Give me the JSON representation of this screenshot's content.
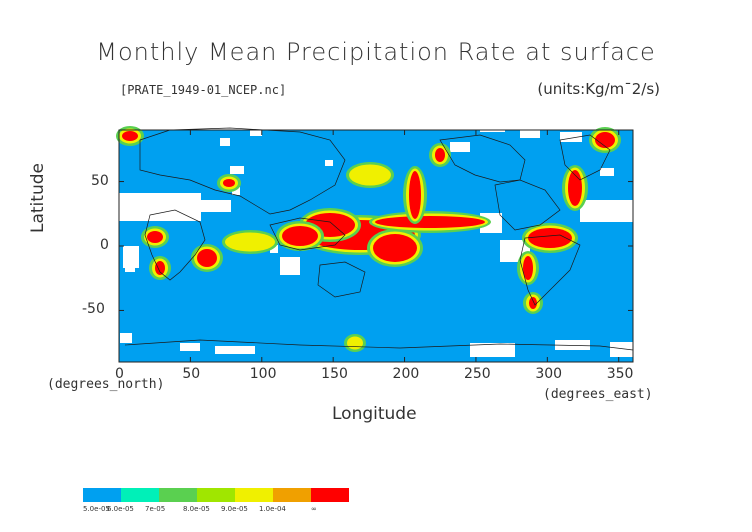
{
  "title": "Monthly Mean Precipitation Rate at surface",
  "file_label": "[PRATE_1949-01_NCEP.nc]",
  "units_label": "(units:Kg/m¯2/s)",
  "y_axis_label": "Latitude",
  "x_axis_label": "Longitude",
  "x_sub_label_left": "(degrees_north)",
  "x_sub_label_right": "(degrees_east)",
  "x_ticks": [
    "0",
    "50",
    "100",
    "150",
    "200",
    "250",
    "300",
    "350"
  ],
  "y_ticks": [
    "50",
    "0",
    "-50"
  ],
  "colors": {
    "ocean_base": "#00a0f0",
    "missing": "#ffffff",
    "land_outline": "#1a1a1a"
  },
  "colorbar": {
    "colors": [
      "#00a0f0",
      "#00f0b8",
      "#5ad050",
      "#a0e600",
      "#f0f000",
      "#f0a000",
      "#ff0000"
    ],
    "labels": [
      "5.0e-05",
      "6.0e-05",
      "7e-05",
      "8.0e-05",
      "9.0e-05",
      "1.0e-04",
      "∞"
    ]
  },
  "chart_data": {
    "type": "heatmap",
    "title": "Monthly Mean Precipitation Rate at surface",
    "xlabel": "Longitude",
    "ylabel": "Latitude",
    "xlim": [
      0,
      360
    ],
    "ylim": [
      -90,
      90
    ],
    "x_ticks": [
      0,
      50,
      100,
      150,
      200,
      250,
      300,
      350
    ],
    "y_ticks": [
      -50,
      0,
      50
    ],
    "units": "Kg/m¯2/s",
    "levels": [
      5e-05,
      6e-05,
      7e-05,
      8e-05,
      9e-05,
      0.0001
    ]
  }
}
